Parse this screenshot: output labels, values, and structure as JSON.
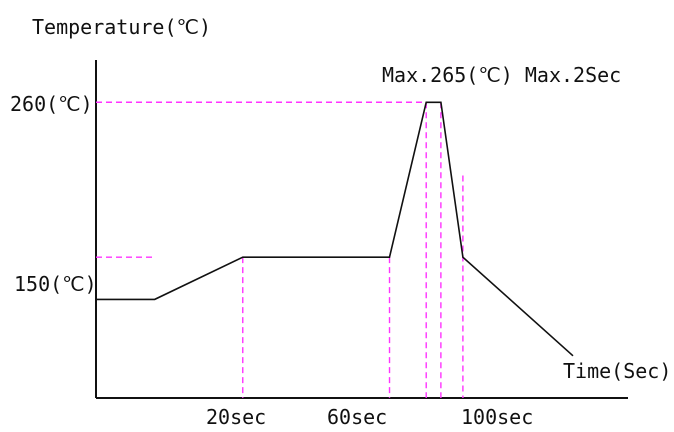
{
  "chart_data": {
    "type": "line",
    "title": "",
    "ylabel": "Temperature(℃)",
    "xlabel": "Time(Sec)",
    "y_ticks": [
      {
        "value": 260,
        "label": "260(℃)"
      },
      {
        "value": 150,
        "label": "150(℃)"
      }
    ],
    "x_ticks": [
      {
        "value": 20,
        "label": "20sec"
      },
      {
        "value": 60,
        "label": "60sec"
      },
      {
        "value": 100,
        "label": "100sec"
      }
    ],
    "annotations": [
      {
        "text": "Max.265(℃) Max.2Sec"
      }
    ],
    "series": [
      {
        "x": [
          -20,
          -4,
          20,
          60,
          70,
          74,
          80,
          110
        ],
        "y": [
          120,
          120,
          150,
          150,
          260,
          260,
          150,
          80
        ]
      }
    ],
    "xlim": [
      -20,
      125
    ],
    "ylim": [
      50,
      290
    ],
    "grid": false,
    "colors": {
      "line": "#111111",
      "guide": "#ff33ff"
    }
  }
}
